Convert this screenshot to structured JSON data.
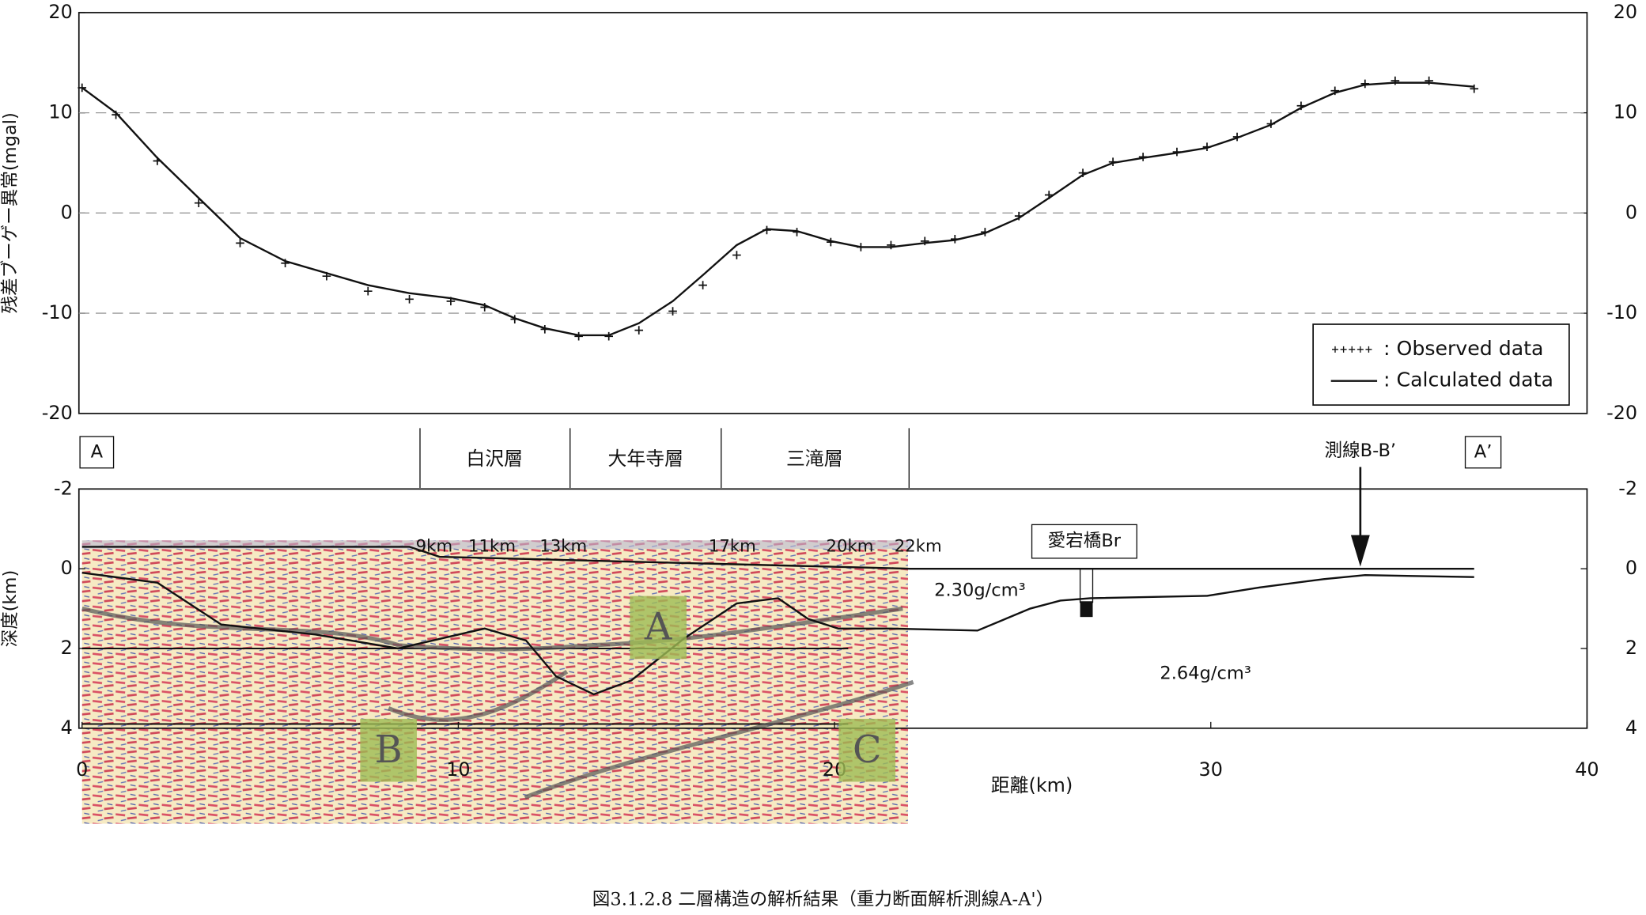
{
  "chart_data": [
    {
      "type": "line",
      "y_label": "残差ブーゲー異常(mgal)",
      "xlim": [
        0,
        40
      ],
      "ylim": [
        -20,
        20
      ],
      "yticks": [
        -20,
        -10,
        0,
        10,
        20
      ],
      "grid": true,
      "legend": "lower right",
      "series": [
        {
          "name": ": Observed data",
          "marker": "+",
          "color": "#111111",
          "x": [
            0,
            0.9,
            2.0,
            3.1,
            4.2,
            5.4,
            6.5,
            7.6,
            8.7,
            9.8,
            10.7,
            11.5,
            12.3,
            13.2,
            14.0,
            14.8,
            15.7,
            16.5,
            17.4,
            18.2,
            19.0,
            19.9,
            20.7,
            21.5,
            22.4,
            23.2,
            24.0,
            24.9,
            25.7,
            26.6,
            27.4,
            28.2,
            29.1,
            29.9,
            30.7,
            31.6,
            32.4,
            33.3,
            34.1,
            34.9,
            35.8,
            37.0
          ],
          "values": [
            12.5,
            9.8,
            5.2,
            1.0,
            -3.0,
            -5.0,
            -6.3,
            -7.8,
            -8.6,
            -8.8,
            -9.4,
            -10.6,
            -11.6,
            -12.3,
            -12.3,
            -11.7,
            -9.8,
            -7.2,
            -4.2,
            -1.7,
            -1.9,
            -2.9,
            -3.4,
            -3.2,
            -2.8,
            -2.6,
            -1.9,
            -0.3,
            1.8,
            4.0,
            5.1,
            5.6,
            6.1,
            6.6,
            7.6,
            8.9,
            10.7,
            12.2,
            12.9,
            13.2,
            13.2,
            12.4
          ]
        },
        {
          "name": ": Calculated data",
          "color": "#111111",
          "x": [
            0,
            0.9,
            2.0,
            3.1,
            4.2,
            5.4,
            6.5,
            7.6,
            8.7,
            9.8,
            10.7,
            11.5,
            12.3,
            13.2,
            14.0,
            14.8,
            15.7,
            16.5,
            17.4,
            18.2,
            19.0,
            19.9,
            20.7,
            21.5,
            22.4,
            23.2,
            24.0,
            24.9,
            25.7,
            26.6,
            27.4,
            28.2,
            29.1,
            29.9,
            30.7,
            31.6,
            32.4,
            33.3,
            34.1,
            34.9,
            35.8,
            37.0
          ],
          "values": [
            12.5,
            10,
            5.5,
            1.5,
            -2.5,
            -4.8,
            -6.0,
            -7.2,
            -8.0,
            -8.5,
            -9.2,
            -10.5,
            -11.5,
            -12.2,
            -12.2,
            -11.0,
            -8.8,
            -6.2,
            -3.2,
            -1.6,
            -1.8,
            -2.8,
            -3.4,
            -3.4,
            -3.0,
            -2.7,
            -2.0,
            -0.5,
            1.5,
            3.8,
            5.0,
            5.5,
            6.0,
            6.5,
            7.5,
            8.8,
            10.5,
            12.0,
            12.8,
            13.0,
            13.0,
            12.6
          ]
        }
      ]
    },
    {
      "type": "line",
      "x_label": "距離(km)",
      "y_label": "深度(km)",
      "xlim": [
        0,
        40
      ],
      "xticks": [
        0,
        10,
        20,
        30,
        40
      ],
      "ylim": [
        -2,
        4
      ],
      "y_inverted": true,
      "yticks": [
        -2,
        0,
        2,
        4
      ],
      "series": [
        {
          "color": "#111111",
          "x": [
            0,
            8.7,
            9.5,
            22,
            37
          ],
          "values": [
            -0.55,
            -0.55,
            -0.3,
            0,
            0
          ]
        },
        {
          "color": "#111111",
          "x": [
            0,
            2.0,
            3.7,
            6.2,
            8.4,
            10.7,
            11.8,
            12.6,
            13.6,
            14.6,
            16.0,
            17.4,
            18.5,
            19.3,
            20.1,
            21.5,
            23.8,
            25.2,
            26.0,
            26.8,
            29.9,
            31.3,
            33.0,
            34.1,
            37.0
          ],
          "values": [
            0.1,
            0.35,
            1.4,
            1.65,
            2.0,
            1.5,
            1.8,
            2.7,
            3.15,
            2.8,
            1.75,
            0.87,
            0.74,
            1.26,
            1.5,
            1.5,
            1.55,
            1.0,
            0.8,
            0.74,
            0.68,
            0.47,
            0.26,
            0.16,
            0.21
          ]
        }
      ],
      "section_ends": [
        "A",
        "A’"
      ],
      "formations": [
        "白沢層",
        "大年寺層",
        "三滝層"
      ],
      "annotations": [
        "測線B-B’",
        "愛宕橋Br",
        "2.30g/cm³",
        "2.64g/cm³"
      ],
      "distance_marks": [
        "9km",
        "11km",
        "13km",
        "17km",
        "20km",
        "22km"
      ],
      "seismic_labels": [
        "A",
        "B",
        "C"
      ]
    }
  ],
  "caption": "図3.1.2.8 二層構造の解析結果（重力断面解析測線A-A'）"
}
